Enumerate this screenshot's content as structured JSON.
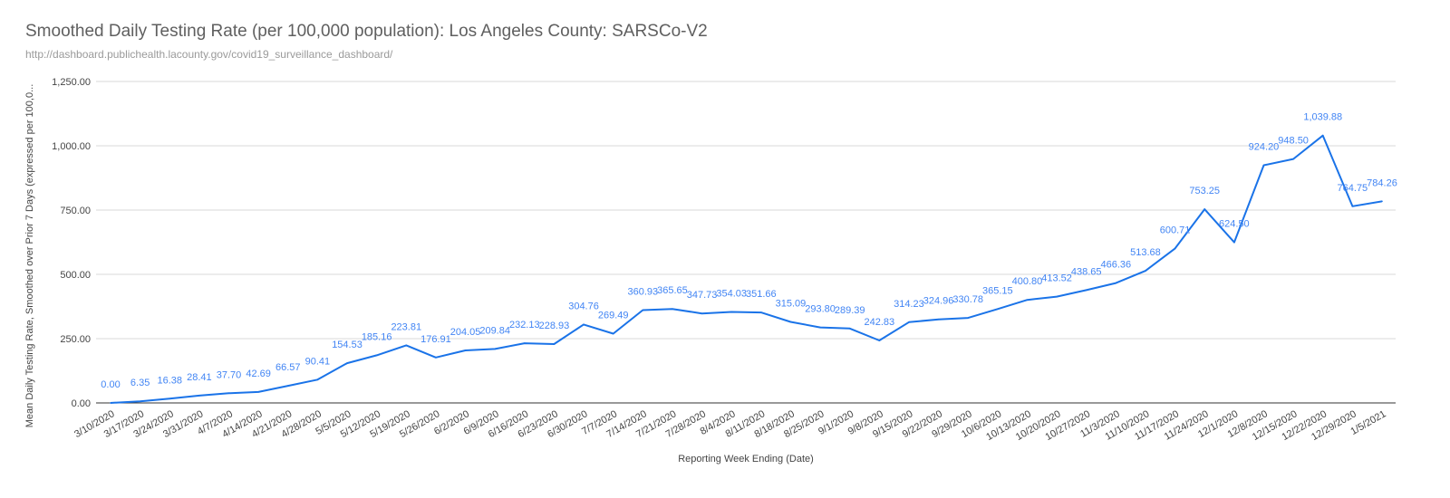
{
  "chart_data": {
    "type": "line",
    "title": "Smoothed Daily Testing Rate (per 100,000 population): Los Angeles County:  SARSCo-V2",
    "subtitle": "http://dashboard.publichealth.lacounty.gov/covid19_surveillance_dashboard/",
    "xlabel": "Reporting Week Ending (Date)",
    "ylabel": "Mean Daily Testing Rate, Smoothed over Prior 7 Days (expressed per 100,0...",
    "ylim": [
      0,
      1250
    ],
    "yticks": [
      "0.00",
      "250.00",
      "500.00",
      "750.00",
      "1,000.00",
      "1,250.00"
    ],
    "ytick_values": [
      0,
      250,
      500,
      750,
      1000,
      1250
    ],
    "line_color": "#1a73e8",
    "label_color": "#4285f4",
    "categories": [
      "3/10/2020",
      "3/17/2020",
      "3/24/2020",
      "3/31/2020",
      "4/7/2020",
      "4/14/2020",
      "4/21/2020",
      "4/28/2020",
      "5/5/2020",
      "5/12/2020",
      "5/19/2020",
      "5/26/2020",
      "6/2/2020",
      "6/9/2020",
      "6/16/2020",
      "6/23/2020",
      "6/30/2020",
      "7/7/2020",
      "7/14/2020",
      "7/21/2020",
      "7/28/2020",
      "8/4/2020",
      "8/11/2020",
      "8/18/2020",
      "8/25/2020",
      "9/1/2020",
      "9/8/2020",
      "9/15/2020",
      "9/22/2020",
      "9/29/2020",
      "10/6/2020",
      "10/13/2020",
      "10/20/2020",
      "10/27/2020",
      "11/3/2020",
      "11/10/2020",
      "11/17/2020",
      "11/24/2020",
      "12/1/2020",
      "12/8/2020",
      "12/15/2020",
      "12/22/2020",
      "12/29/2020",
      "1/5/2021"
    ],
    "values": [
      0.0,
      6.35,
      16.38,
      28.41,
      37.7,
      42.69,
      66.57,
      90.41,
      154.53,
      185.16,
      223.81,
      176.91,
      204.05,
      209.84,
      232.13,
      228.93,
      304.76,
      269.49,
      360.93,
      365.65,
      347.73,
      354.03,
      351.66,
      315.09,
      293.8,
      289.39,
      242.83,
      314.23,
      324.96,
      330.78,
      365.15,
      400.8,
      413.52,
      438.65,
      466.36,
      513.68,
      600.71,
      753.25,
      624.5,
      924.2,
      948.5,
      1039.88,
      764.75,
      784.26
    ],
    "data_labels": [
      "0.00",
      "6.35",
      "16.38",
      "28.41",
      "37.70",
      "42.69",
      "66.57",
      "90.41",
      "154.53",
      "185.16",
      "223.81",
      "176.91",
      "204.05",
      "209.84",
      "232.13",
      "228.93",
      "304.76",
      "269.49",
      "360.93",
      "365.65",
      "347.73",
      "354.03",
      "351.66",
      "315.09",
      "293.80",
      "289.39",
      "242.83",
      "314.23",
      "324.96",
      "330.78",
      "365.15",
      "400.80",
      "413.52",
      "438.65",
      "466.36",
      "513.68",
      "600.71",
      "753.25",
      "624.50",
      "924.20",
      "948.50",
      "1,039.88",
      "764.75",
      "784.26"
    ]
  }
}
